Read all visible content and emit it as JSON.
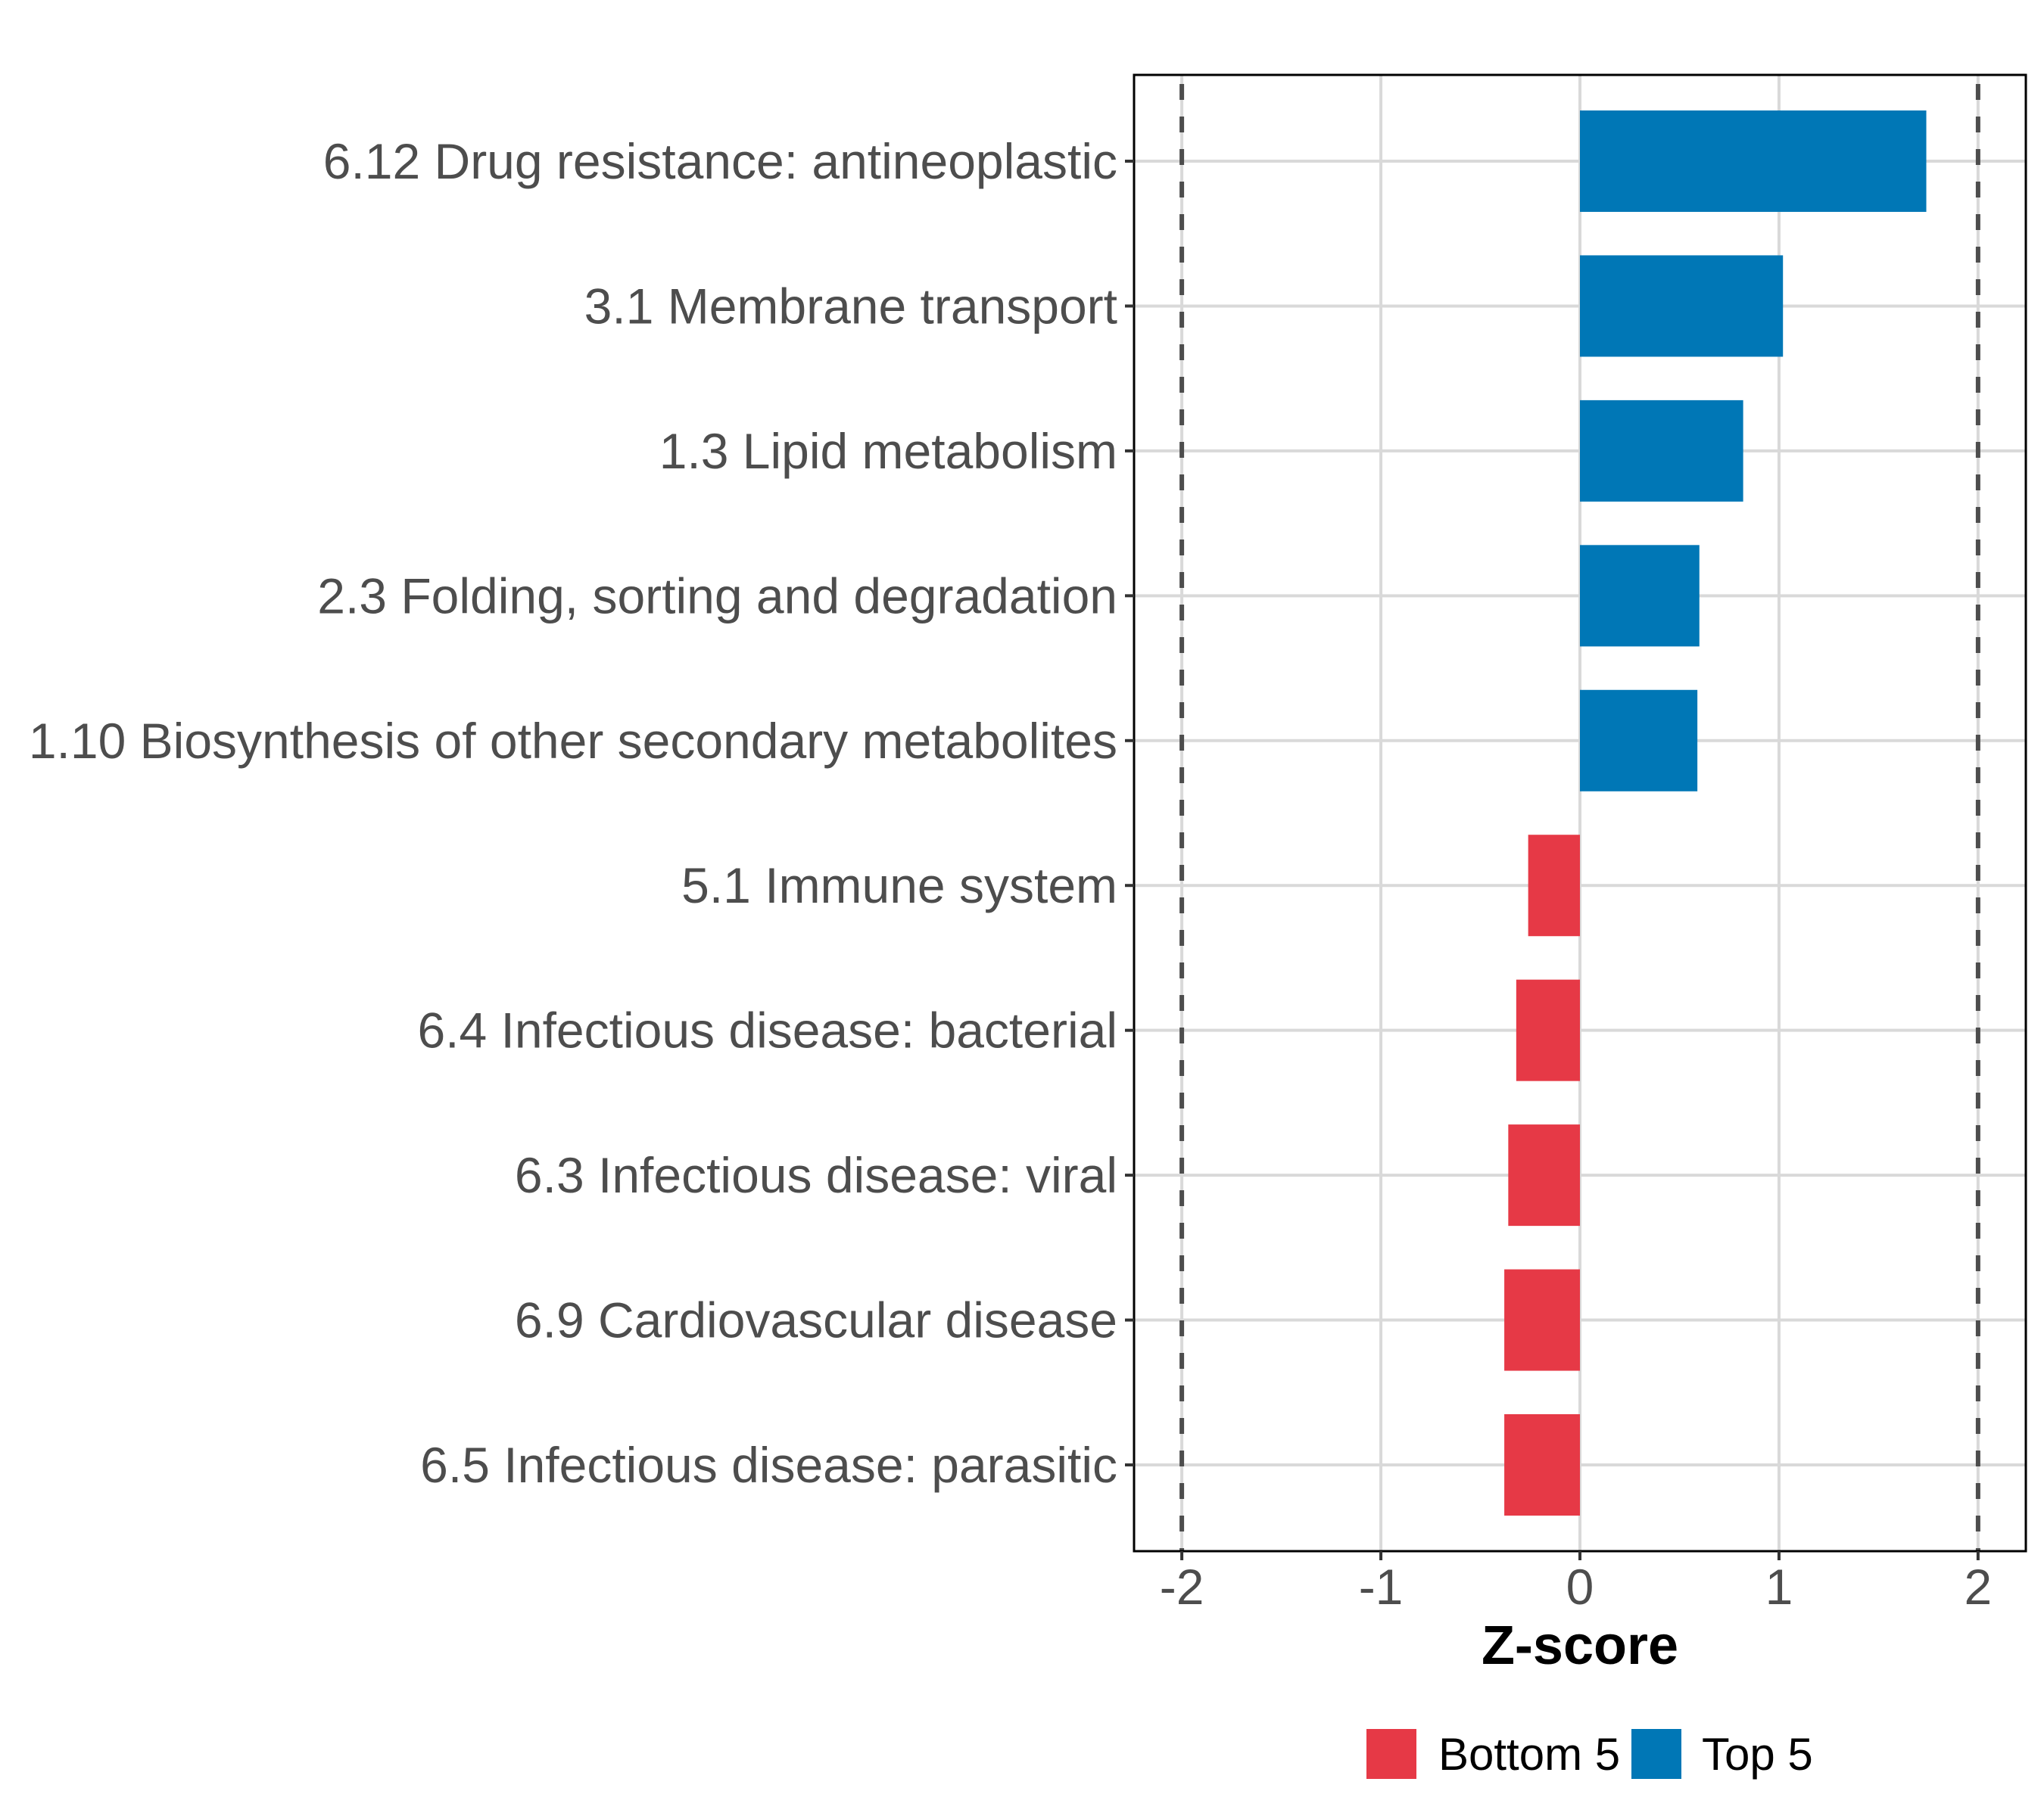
{
  "chart_data": {
    "type": "bar",
    "orientation": "horizontal",
    "title": "",
    "xlabel": "Z-score",
    "ylabel": "",
    "xlim": [
      -2.24,
      2.24
    ],
    "xticks": [
      -2,
      -1,
      0,
      1,
      2
    ],
    "xtick_labels": [
      "-2",
      "-1",
      "0",
      "1",
      "2"
    ],
    "grid": true,
    "reference_lines": [
      {
        "x": -2,
        "style": "dashed"
      },
      {
        "x": 2,
        "style": "dashed"
      }
    ],
    "categories": [
      "6.12 Drug resistance: antineoplastic",
      "3.1 Membrane transport",
      "1.3 Lipid metabolism",
      "2.3 Folding, sorting and degradation",
      "1.10 Biosynthesis of other secondary metabolites",
      "5.1 Immune system",
      "6.4 Infectious disease: bacterial",
      "6.3 Infectious disease: viral",
      "6.9 Cardiovascular disease",
      "6.5 Infectious disease: parasitic"
    ],
    "values": [
      1.74,
      1.02,
      0.82,
      0.6,
      0.59,
      -0.26,
      -0.32,
      -0.36,
      -0.38,
      -0.38
    ],
    "groups": [
      "Top 5",
      "Top 5",
      "Top 5",
      "Top 5",
      "Top 5",
      "Bottom 5",
      "Bottom 5",
      "Bottom 5",
      "Bottom 5",
      "Bottom 5"
    ],
    "legend": {
      "placement": "bottom",
      "entries": [
        {
          "label": "Bottom 5",
          "color": "#E63946"
        },
        {
          "label": "Top 5",
          "color": "#0077B6"
        }
      ]
    },
    "colors": {
      "Top 5": "#0077B6",
      "Bottom 5": "#E63946",
      "grid": "#d9d9d9",
      "reference_line": "#4d4d4d",
      "text": "#4d4d4d",
      "panel_border": "#000000"
    }
  }
}
